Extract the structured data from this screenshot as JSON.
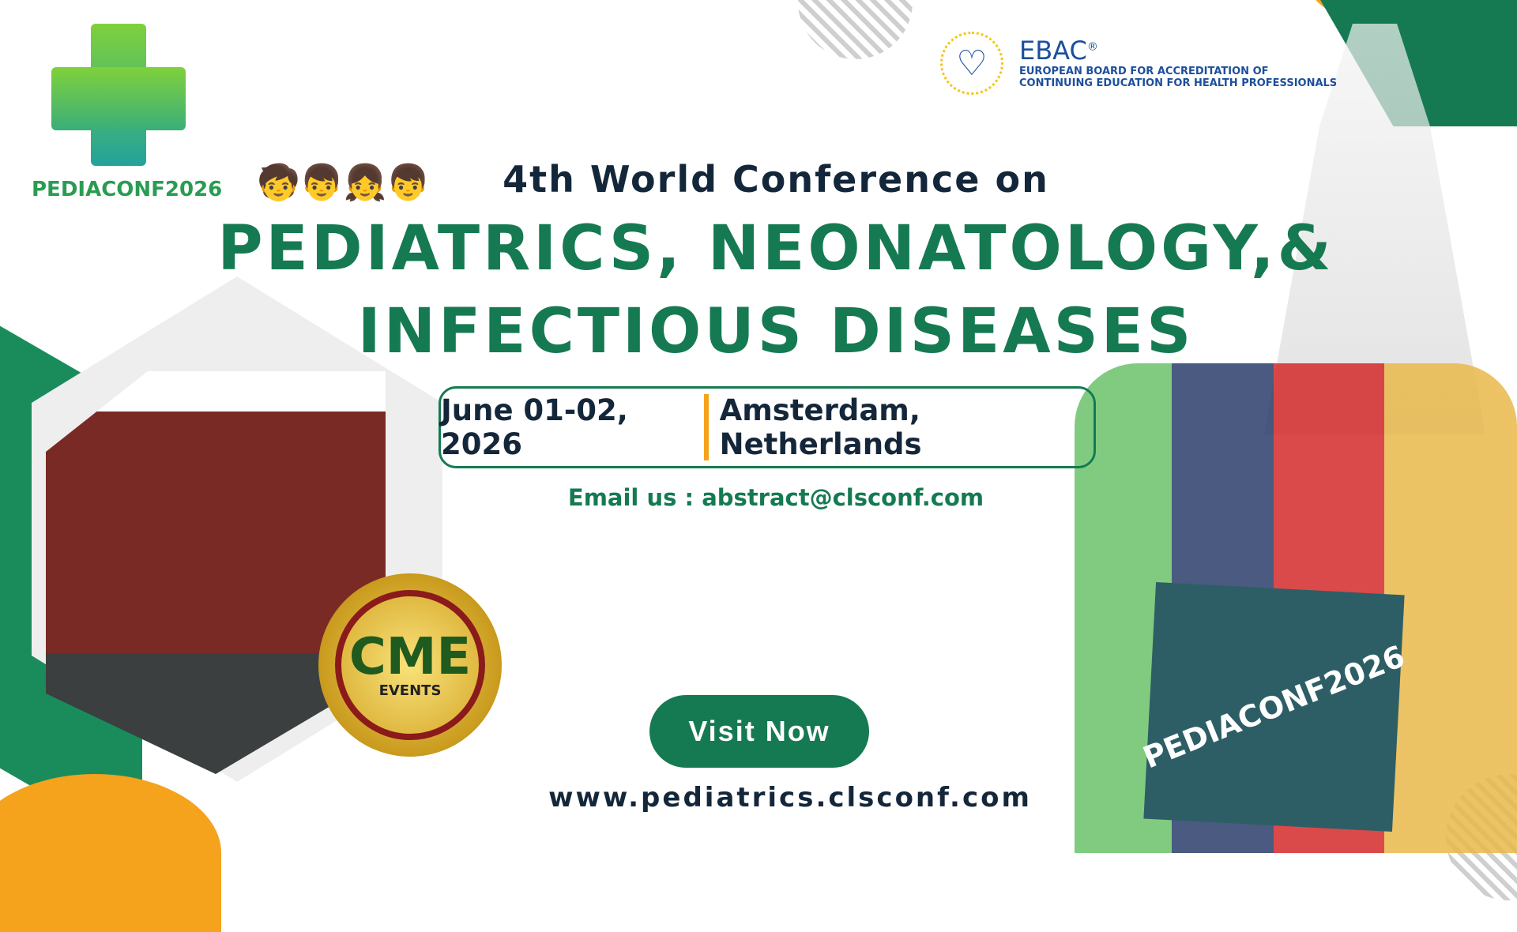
{
  "logo": {
    "text": "PEDIACONF2026"
  },
  "ebac": {
    "name": "EBAC",
    "registered": "®",
    "line1": "EUROPEAN BOARD FOR ACCREDITATION OF",
    "line2": "CONTINUING EDUCATION FOR HEALTH PROFESSIONALS"
  },
  "headline": {
    "pre": "4th World Conference on",
    "line1": "PEDIATRICS, NEONATOLOGY,&",
    "line2": "INFECTIOUS DISEASES"
  },
  "event": {
    "date": "June 01-02, 2026",
    "location": "Amsterdam, Netherlands"
  },
  "contact": {
    "label": "Email us :",
    "email": "abstract@clsconf.com"
  },
  "cta": {
    "label": "Visit Now"
  },
  "website": "www.pediatrics.clsconf.com",
  "badge": {
    "title": "CME",
    "subtitle": "EVENTS"
  },
  "board_text": "PEDIACONF2026",
  "colors": {
    "brand_green": "#157a52",
    "accent_orange": "#f5a21c",
    "navy": "#14273a"
  }
}
